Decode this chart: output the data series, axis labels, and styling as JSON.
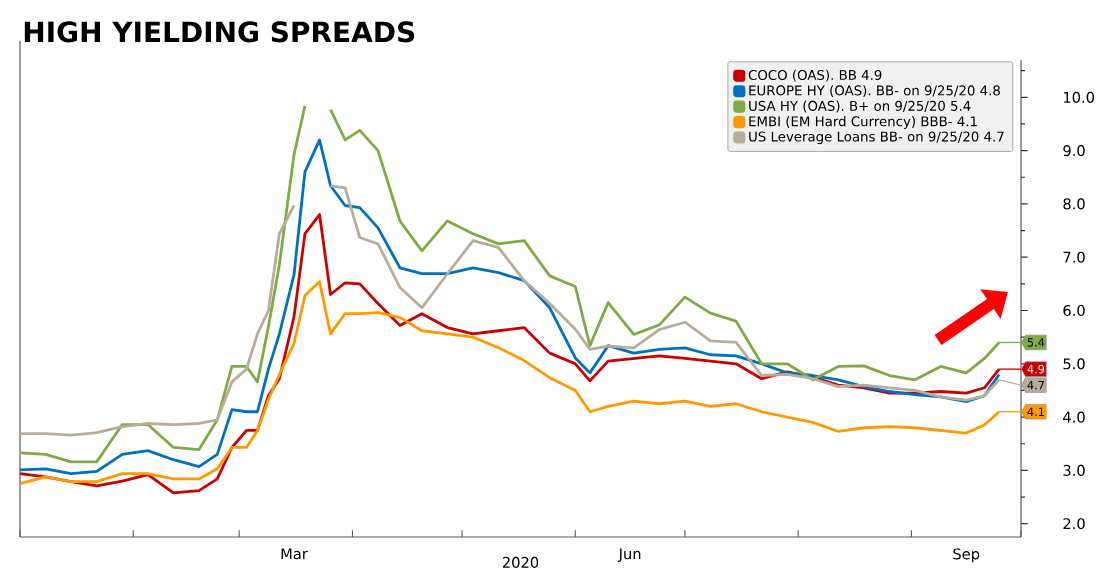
{
  "chart_data": {
    "type": "line",
    "title": "HIGH YIELDING SPREADS",
    "xlabel": "2020",
    "x": [
      "2020-01-01",
      "2020-01-08",
      "2020-01-15",
      "2020-01-22",
      "2020-01-29",
      "2020-02-05",
      "2020-02-12",
      "2020-02-19",
      "2020-02-24",
      "2020-02-28",
      "2020-03-03",
      "2020-03-06",
      "2020-03-09",
      "2020-03-12",
      "2020-03-16",
      "2020-03-19",
      "2020-03-23",
      "2020-03-26",
      "2020-03-30",
      "2020-04-03",
      "2020-04-08",
      "2020-04-14",
      "2020-04-20",
      "2020-04-27",
      "2020-05-04",
      "2020-05-11",
      "2020-05-18",
      "2020-05-25",
      "2020-06-01",
      "2020-06-05",
      "2020-06-10",
      "2020-06-17",
      "2020-06-24",
      "2020-07-01",
      "2020-07-08",
      "2020-07-15",
      "2020-07-22",
      "2020-07-29",
      "2020-08-05",
      "2020-08-12",
      "2020-08-19",
      "2020-08-26",
      "2020-09-02",
      "2020-09-09",
      "2020-09-16",
      "2020-09-21",
      "2020-09-25"
    ],
    "series": [
      {
        "name": "COCO (OAS). BB 4.9",
        "color": "#cc0000",
        "values": [
          2.94,
          2.88,
          2.79,
          2.71,
          2.8,
          2.92,
          2.58,
          2.62,
          2.84,
          3.43,
          3.75,
          3.75,
          4.4,
          4.72,
          5.88,
          7.44,
          7.8,
          6.3,
          6.52,
          6.5,
          6.13,
          5.72,
          5.94,
          5.68,
          5.56,
          5.62,
          5.68,
          5.2,
          5.0,
          4.68,
          5.05,
          5.1,
          5.15,
          5.1,
          5.05,
          5.0,
          4.72,
          4.85,
          4.75,
          4.6,
          4.55,
          4.45,
          4.45,
          4.48,
          4.45,
          4.55,
          4.9
        ]
      },
      {
        "name": "EUROPE HY (OAS). BB- on 9/25/20 4.8",
        "color": "#0070c0",
        "values": [
          3.01,
          3.03,
          2.94,
          2.98,
          3.3,
          3.37,
          3.2,
          3.07,
          3.3,
          4.14,
          4.1,
          4.1,
          4.9,
          5.56,
          6.67,
          8.6,
          9.2,
          8.34,
          7.97,
          7.93,
          7.55,
          6.8,
          6.69,
          6.69,
          6.8,
          6.71,
          6.56,
          6.05,
          5.11,
          4.83,
          5.34,
          5.2,
          5.27,
          5.3,
          5.17,
          5.15,
          5.0,
          4.83,
          4.78,
          4.7,
          4.57,
          4.48,
          4.42,
          4.38,
          4.29,
          4.4,
          4.8
        ]
      },
      {
        "name": "USA HY (OAS). B+ on 9/25/20 5.4",
        "color": "#7faa44",
        "values": [
          3.33,
          3.3,
          3.16,
          3.16,
          3.86,
          3.86,
          3.43,
          3.39,
          3.95,
          4.95,
          4.95,
          4.66,
          5.7,
          6.86,
          8.92,
          9.84,
          null,
          9.77,
          9.2,
          9.38,
          9.0,
          7.68,
          7.12,
          7.68,
          7.44,
          7.25,
          7.31,
          6.65,
          6.45,
          5.34,
          6.15,
          5.55,
          5.73,
          6.25,
          5.95,
          5.8,
          5.0,
          5.0,
          4.7,
          4.95,
          4.96,
          4.78,
          4.7,
          4.95,
          4.83,
          5.1,
          5.4
        ]
      },
      {
        "name": "EMBI (EM Hard Currency) BBB- 4.1",
        "color": "#ff9900",
        "values": [
          2.75,
          2.88,
          2.79,
          2.79,
          2.94,
          2.94,
          2.84,
          2.84,
          3.03,
          3.43,
          3.43,
          3.75,
          4.33,
          4.8,
          5.38,
          6.28,
          6.54,
          5.56,
          5.94,
          5.94,
          5.96,
          5.87,
          5.62,
          5.56,
          5.5,
          5.3,
          5.06,
          4.74,
          4.5,
          4.1,
          4.2,
          4.3,
          4.25,
          4.3,
          4.2,
          4.25,
          4.1,
          4.0,
          3.9,
          3.73,
          3.8,
          3.82,
          3.8,
          3.75,
          3.7,
          3.85,
          4.1
        ]
      },
      {
        "name": "US Leverage Loans BB- on 9/25/20 4.7",
        "color": "#b8ad9b",
        "values": [
          3.69,
          3.69,
          3.66,
          3.71,
          3.82,
          3.88,
          3.86,
          3.88,
          3.95,
          4.66,
          4.9,
          5.56,
          6.0,
          7.44,
          7.97,
          null,
          null,
          8.34,
          8.3,
          7.37,
          7.25,
          6.43,
          6.05,
          6.69,
          7.31,
          7.18,
          6.56,
          6.13,
          5.65,
          5.27,
          5.33,
          5.3,
          5.64,
          5.78,
          5.43,
          5.4,
          4.78,
          4.8,
          4.72,
          4.57,
          4.6,
          4.55,
          4.5,
          4.38,
          4.32,
          4.4,
          4.7
        ]
      }
    ],
    "xlim": [
      "2020-01-01",
      "2020-10-01"
    ],
    "xticks": [
      {
        "value": "2020-01-01",
        "label": null
      },
      {
        "value": "2020-02-01",
        "label": null
      },
      {
        "value": "2020-03-01",
        "label": null
      },
      {
        "value": "2020-04-01",
        "label": null
      },
      {
        "value": "2020-05-01",
        "label": null
      },
      {
        "value": "2020-06-01",
        "label": null
      },
      {
        "value": "2020-07-01",
        "label": null
      },
      {
        "value": "2020-08-01",
        "label": null
      },
      {
        "value": "2020-09-01",
        "label": null
      },
      {
        "value": "2020-10-01",
        "label": null
      },
      {
        "value": "2020-03-16",
        "label": "Mar"
      },
      {
        "value": "2020-06-16",
        "label": "Jun"
      },
      {
        "value": "2020-09-16",
        "label": "Sep"
      }
    ],
    "ylim": [
      1.75,
      10.7
    ],
    "yticks": [
      {
        "value": 2,
        "label": "2.0"
      },
      {
        "value": 3,
        "label": "3.0"
      },
      {
        "value": 4,
        "label": "4.0"
      },
      {
        "value": 5,
        "label": "5.0"
      },
      {
        "value": 6,
        "label": "6.0"
      },
      {
        "value": 7,
        "label": "7.0"
      },
      {
        "value": 8,
        "label": "8.0"
      },
      {
        "value": 9,
        "label": "9.0"
      },
      {
        "value": 10,
        "label": "10.0"
      },
      {
        "value": 2.5,
        "label": null
      },
      {
        "value": 3.5,
        "label": null
      },
      {
        "value": 4.5,
        "label": null
      },
      {
        "value": 5.5,
        "label": null
      },
      {
        "value": 6.5,
        "label": null
      },
      {
        "value": 7.5,
        "label": null
      },
      {
        "value": 8.5,
        "label": null
      },
      {
        "value": 9.5,
        "label": null
      },
      {
        "value": 10.5,
        "label": null
      }
    ],
    "annotations": [
      {
        "text": "5.4",
        "x": "2020-09-25",
        "y": 5.4
      },
      {
        "text": "4.9",
        "x": "2020-09-25",
        "y": 4.9
      },
      {
        "text": "4.7",
        "x": "2020-09-25",
        "y": 4.7
      },
      {
        "text": "4.1",
        "x": "2020-09-25",
        "y": 4.1
      }
    ],
    "legend": "top right",
    "marker": "none",
    "line_style": "solid"
  }
}
